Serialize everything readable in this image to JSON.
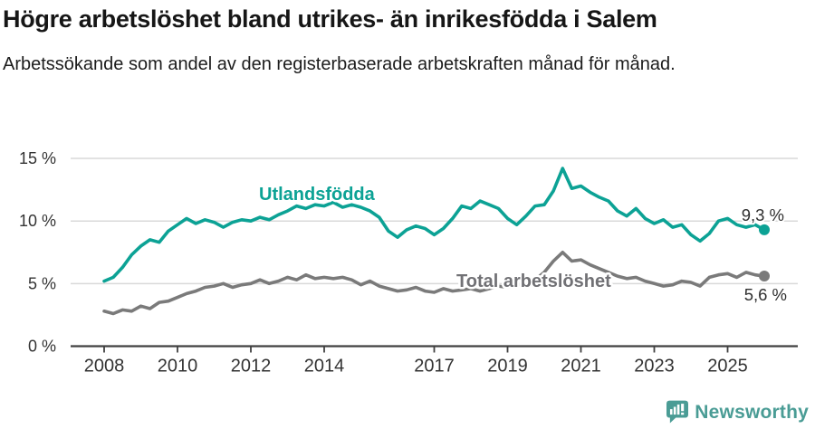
{
  "header": {
    "title": "Högre arbetslöshet bland utrikes- än inrikesfödda i Salem",
    "subtitle": "Arbetssökande som andel av den registerbaserade arbetskraften månad för månad."
  },
  "chart_data": {
    "type": "line",
    "title": "Högre arbetslöshet bland utrikes- än inrikesfödda i Salem",
    "subtitle": "Arbetssökande som andel av den registerbaserade arbetskraften månad för månad.",
    "unit": "%",
    "grid": "horizontal",
    "legend": "inline-labels",
    "xlim": [
      2007.1,
      2026.9
    ],
    "ylim": [
      0,
      15.5
    ],
    "x_start": 2008.0,
    "x_step": 0.25,
    "x_ticks": [
      2008,
      2010,
      2012,
      2014,
      2017,
      2019,
      2021,
      2023,
      2025
    ],
    "y_ticks": [
      {
        "value": 0,
        "label": "0 %"
      },
      {
        "value": 5,
        "label": "5 %"
      },
      {
        "value": 10,
        "label": "10 %"
      },
      {
        "value": 15,
        "label": "15 %"
      }
    ],
    "series": [
      {
        "name": "Total arbetslöshet",
        "color": "#7a7a7a",
        "label_color": "#717175",
        "end_label": "5,6 %",
        "values": [
          2.8,
          2.6,
          2.9,
          2.8,
          3.2,
          3.0,
          3.5,
          3.6,
          3.9,
          4.2,
          4.4,
          4.7,
          4.8,
          5.0,
          4.7,
          4.9,
          5.0,
          5.3,
          5.0,
          5.2,
          5.5,
          5.3,
          5.7,
          5.4,
          5.5,
          5.4,
          5.5,
          5.3,
          4.9,
          5.2,
          4.8,
          4.6,
          4.4,
          4.5,
          4.7,
          4.4,
          4.3,
          4.6,
          4.4,
          4.5,
          4.6,
          4.4,
          4.6,
          4.8,
          4.7,
          4.9,
          5.0,
          5.3,
          5.9,
          6.8,
          7.5,
          6.8,
          6.9,
          6.5,
          6.2,
          5.9,
          5.6,
          5.4,
          5.5,
          5.2,
          5.0,
          4.8,
          4.9,
          5.2,
          5.1,
          4.8,
          5.5,
          5.7,
          5.8,
          5.5,
          5.9,
          5.7,
          5.6
        ]
      },
      {
        "name": "Utlandsfödda",
        "color": "#0ca295",
        "label_color": "#0ca295",
        "end_label": "9,3 %",
        "values": [
          5.2,
          5.5,
          6.3,
          7.3,
          8.0,
          8.5,
          8.3,
          9.2,
          9.7,
          10.2,
          9.8,
          10.1,
          9.9,
          9.5,
          9.9,
          10.1,
          10.0,
          10.3,
          10.1,
          10.5,
          10.8,
          11.2,
          11.0,
          11.3,
          11.2,
          11.5,
          11.1,
          11.3,
          11.1,
          10.8,
          10.3,
          9.2,
          8.7,
          9.3,
          9.6,
          9.4,
          8.9,
          9.4,
          10.2,
          11.2,
          11.0,
          11.6,
          11.3,
          11.0,
          10.2,
          9.7,
          10.4,
          11.2,
          11.3,
          12.4,
          14.2,
          12.6,
          12.8,
          12.3,
          11.9,
          11.6,
          10.8,
          10.4,
          11.0,
          10.2,
          9.8,
          10.1,
          9.5,
          9.7,
          8.9,
          8.4,
          9.0,
          10.0,
          10.2,
          9.7,
          9.5,
          9.7,
          9.3
        ]
      }
    ],
    "colors": {
      "gridline": "#d9d9d9",
      "axis": "#404040",
      "tick_label": "#333333",
      "value_label": "#2f2f2f"
    }
  },
  "footer": {
    "brand": "Newsworthy",
    "brand_color": "#4a9c95",
    "logo_icon": "bar-chart-speech-bubble-icon"
  }
}
